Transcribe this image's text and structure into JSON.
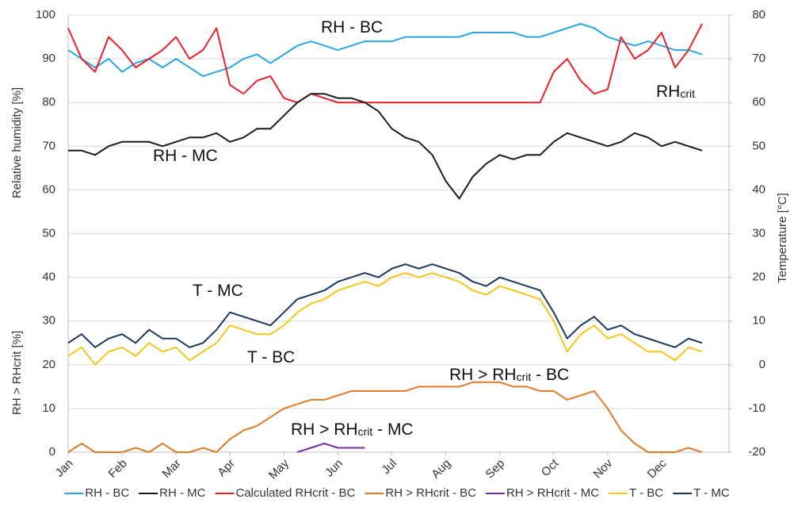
{
  "chart_data": {
    "type": "line",
    "y_axis_titles": [
      "Relative humidity [%]",
      "RH > RHcrit [%]"
    ],
    "y2_axis_title": "Temperature [°C]",
    "annotations": [
      {
        "parts": [
          "RH - BC"
        ]
      },
      {
        "parts": [
          "RH - MC"
        ]
      },
      {
        "parts": [
          "RH",
          "crit"
        ]
      },
      {
        "parts": [
          "T - MC"
        ]
      },
      {
        "parts": [
          "T - BC"
        ]
      },
      {
        "parts": [
          "RH > RH",
          "crit",
          " - BC"
        ]
      },
      {
        "parts": [
          "RH > RH",
          "crit",
          " - MC"
        ]
      }
    ],
    "categories": [
      "Jan",
      null,
      null,
      null,
      "Feb",
      null,
      null,
      null,
      "Mar",
      null,
      null,
      null,
      "Apr",
      null,
      null,
      null,
      "May",
      null,
      null,
      null,
      "Jun",
      null,
      null,
      null,
      "Jul",
      null,
      null,
      null,
      "Aug",
      null,
      null,
      null,
      "Sep",
      null,
      null,
      null,
      "Oct",
      null,
      null,
      null,
      "Nov",
      null,
      null,
      null,
      "Dec",
      null,
      null,
      null
    ],
    "ylim": [
      0,
      100
    ],
    "yticks": [
      0,
      10,
      20,
      30,
      40,
      50,
      60,
      70,
      80,
      90,
      100
    ],
    "y2lim": [
      -20,
      80
    ],
    "y2ticks": [
      -20,
      -10,
      0,
      10,
      20,
      30,
      40,
      50,
      60,
      70,
      80
    ],
    "grid": true,
    "legend": "bottom",
    "series": [
      {
        "name": "RH - BC",
        "color": "#2aa7e0",
        "values": [
          92,
          90,
          88,
          90,
          87,
          89,
          90,
          88,
          90,
          88,
          86,
          87,
          88,
          90,
          91,
          89,
          91,
          93,
          94,
          93,
          92,
          93,
          94,
          94,
          94,
          95,
          95,
          95,
          95,
          95,
          96,
          96,
          96,
          96,
          95,
          95,
          96,
          97,
          98,
          97,
          95,
          94,
          93,
          94,
          93,
          92,
          92,
          91
        ]
      },
      {
        "name": "RH - MC",
        "color": "#1a1a1a",
        "values": [
          69,
          69,
          68,
          70,
          71,
          71,
          71,
          70,
          71,
          72,
          72,
          73,
          71,
          72,
          74,
          74,
          77,
          80,
          82,
          82,
          81,
          81,
          80,
          78,
          74,
          72,
          71,
          68,
          62,
          58,
          63,
          66,
          68,
          67,
          68,
          68,
          71,
          73,
          72,
          71,
          70,
          71,
          73,
          72,
          70,
          71,
          70,
          69
        ]
      },
      {
        "name": "Calculated RHcrit - BC",
        "color": "#e8202a",
        "values": [
          97,
          90,
          87,
          95,
          92,
          88,
          90,
          92,
          95,
          90,
          92,
          97,
          84,
          82,
          85,
          86,
          81,
          80,
          82,
          81,
          80,
          80,
          80,
          80,
          80,
          80,
          80,
          80,
          80,
          80,
          80,
          80,
          80,
          80,
          80,
          80,
          87,
          90,
          85,
          82,
          83,
          95,
          90,
          92,
          96,
          88,
          92,
          98
        ]
      },
      {
        "name": "RH > RHcrit - BC",
        "color": "#e07a28",
        "values": [
          0,
          2,
          0,
          0,
          0,
          1,
          0,
          2,
          0,
          0,
          1,
          0,
          3,
          5,
          6,
          8,
          10,
          11,
          12,
          12,
          13,
          14,
          14,
          14,
          14,
          14,
          15,
          15,
          15,
          15,
          16,
          16,
          16,
          15,
          15,
          14,
          14,
          12,
          13,
          14,
          10,
          5,
          2,
          0,
          0,
          0,
          1,
          0
        ]
      },
      {
        "name": "RH > RHcrit - MC",
        "color": "#7030a0",
        "values": [
          null,
          null,
          null,
          null,
          null,
          null,
          null,
          null,
          null,
          null,
          null,
          null,
          null,
          null,
          null,
          null,
          null,
          0,
          1,
          2,
          1,
          1,
          1,
          null,
          null,
          null,
          null,
          null,
          null,
          null,
          null,
          null,
          null,
          null,
          null,
          null,
          null,
          null,
          null,
          null,
          null,
          null,
          null,
          null,
          null,
          null,
          null,
          null
        ]
      },
      {
        "name": "T - BC",
        "color": "#f5c518",
        "axis": "y2",
        "values": [
          2,
          4,
          0,
          3,
          4,
          2,
          5,
          3,
          4,
          1,
          3,
          5,
          9,
          8,
          7,
          7,
          9,
          12,
          14,
          15,
          17,
          18,
          19,
          18,
          20,
          21,
          20,
          21,
          20,
          19,
          17,
          16,
          18,
          17,
          16,
          15,
          10,
          3,
          7,
          9,
          6,
          7,
          5,
          3,
          3,
          1,
          4,
          3
        ]
      },
      {
        "name": "T - MC",
        "color": "#17375e",
        "axis": "y2",
        "values": [
          5,
          7,
          4,
          6,
          7,
          5,
          8,
          6,
          6,
          4,
          5,
          8,
          12,
          11,
          10,
          9,
          12,
          15,
          16,
          17,
          19,
          20,
          21,
          20,
          22,
          23,
          22,
          23,
          22,
          21,
          19,
          18,
          20,
          19,
          18,
          17,
          12,
          6,
          9,
          11,
          8,
          9,
          7,
          6,
          5,
          4,
          6,
          5
        ]
      }
    ]
  }
}
